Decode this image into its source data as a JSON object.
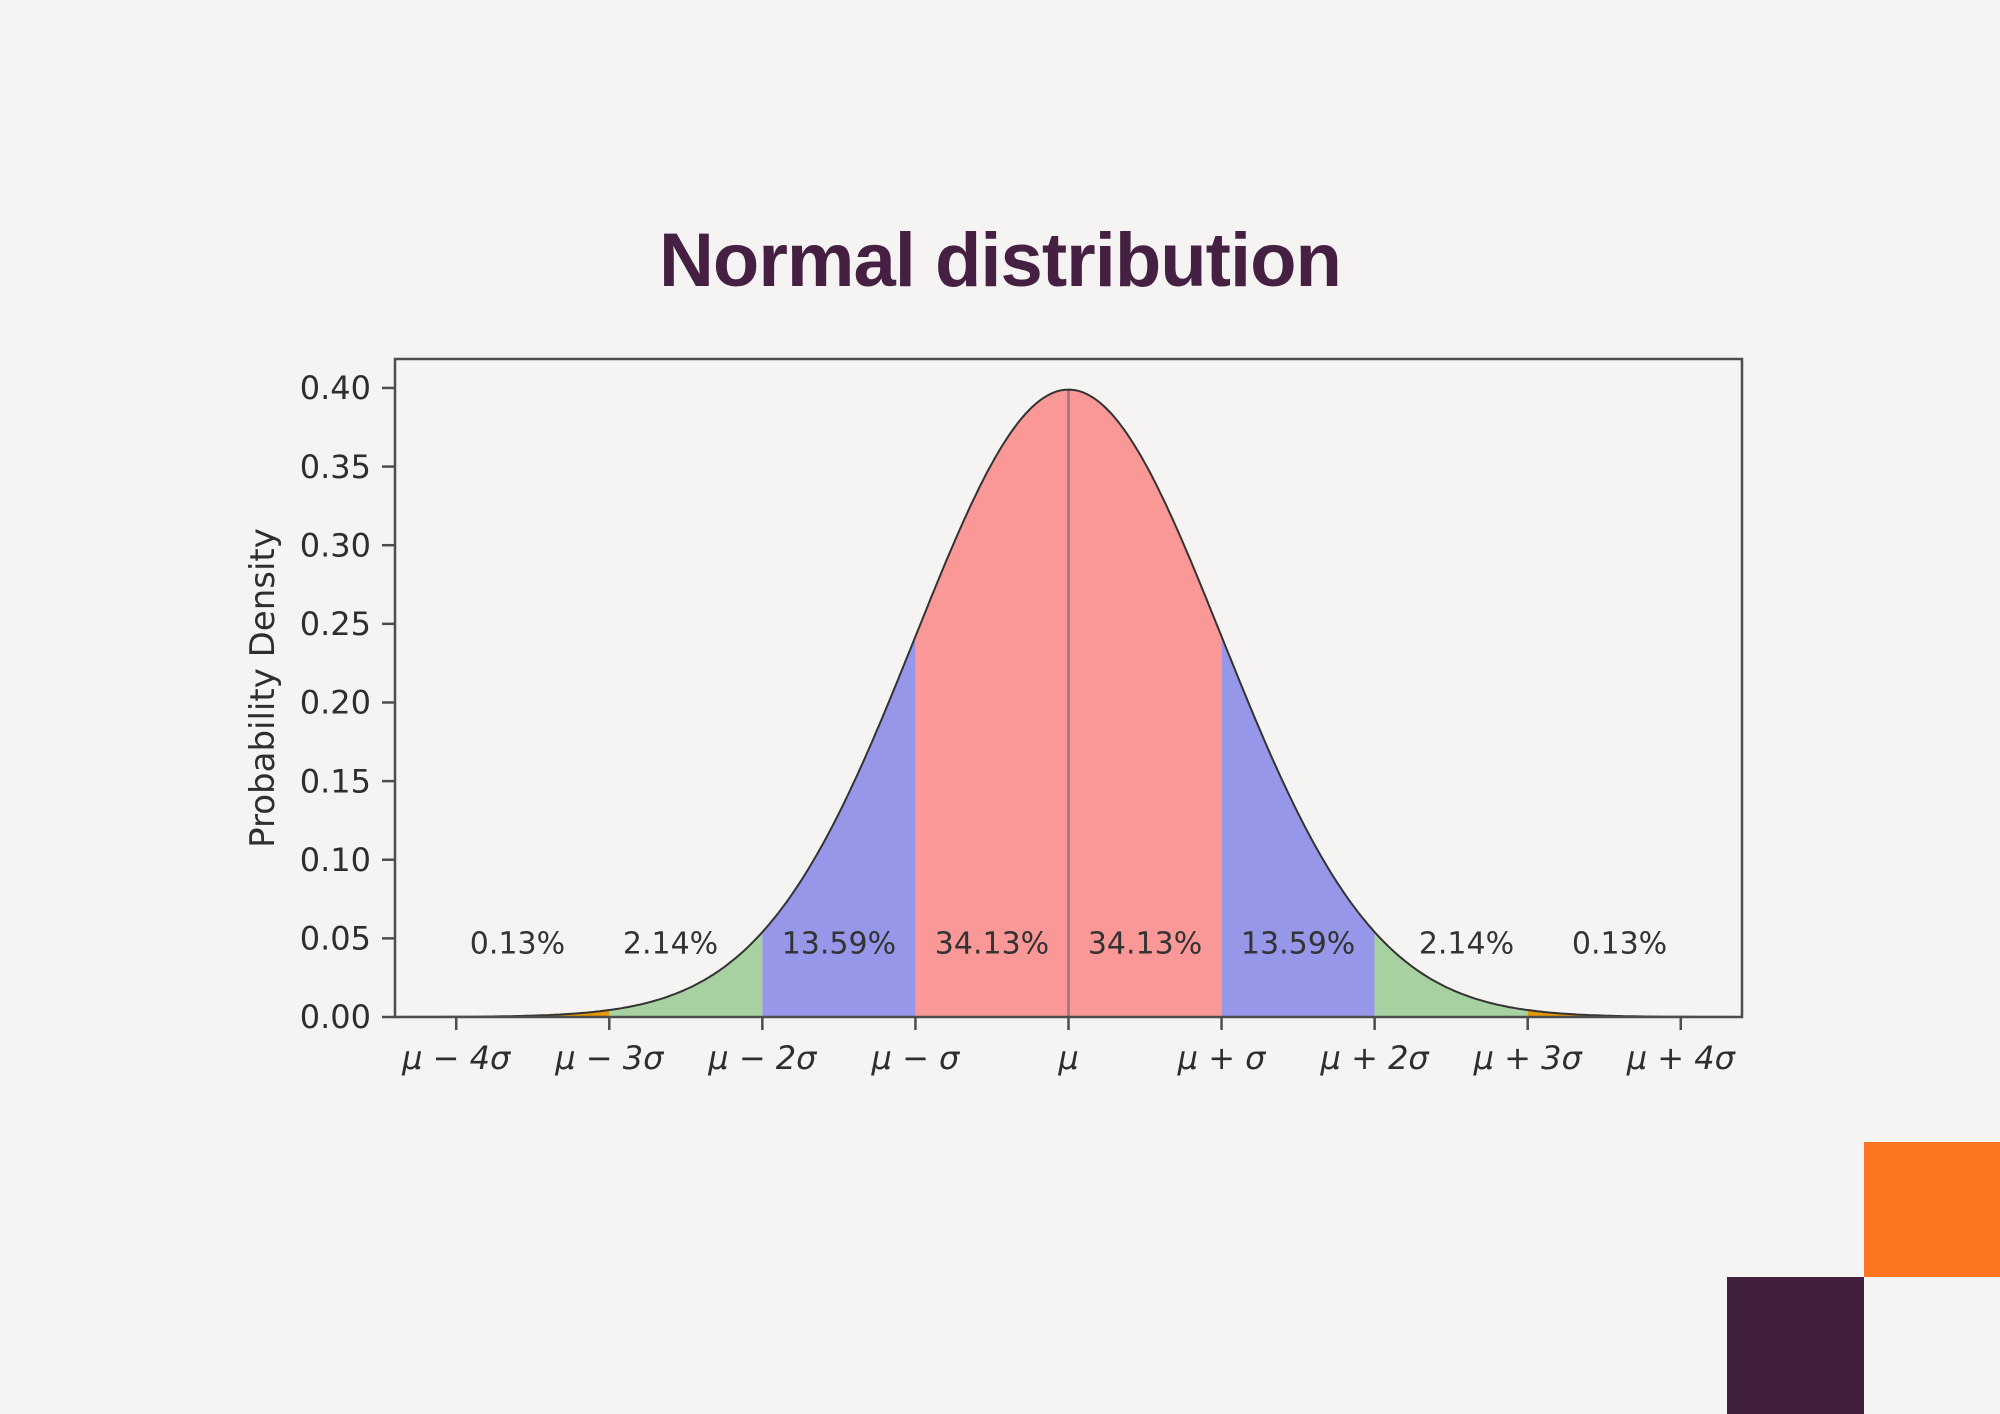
{
  "page": {
    "title": "Normal distribution",
    "background_color": "#f5f4f2",
    "title_color": "#452042"
  },
  "decorations": {
    "orange_square_color": "#fb7420",
    "purple_square_color": "#41203d"
  },
  "chart_data": {
    "type": "area",
    "title": "Normal distribution",
    "xlabel": "",
    "ylabel": "Probability Density",
    "xlim": [
      -4.4,
      4.4
    ],
    "ylim": [
      0,
      0.4184
    ],
    "grid": false,
    "legend": false,
    "distribution": "standard normal probability density, mean mu, std sigma",
    "peak_density": 0.3989,
    "y_ticks": [
      {
        "value": 0.0,
        "label": "0.00"
      },
      {
        "value": 0.05,
        "label": "0.05"
      },
      {
        "value": 0.1,
        "label": "0.10"
      },
      {
        "value": 0.15,
        "label": "0.15"
      },
      {
        "value": 0.2,
        "label": "0.20"
      },
      {
        "value": 0.25,
        "label": "0.25"
      },
      {
        "value": 0.3,
        "label": "0.30"
      },
      {
        "value": 0.35,
        "label": "0.35"
      },
      {
        "value": 0.4,
        "label": "0.40"
      }
    ],
    "x_ticks": [
      {
        "value": -4,
        "label": "μ − 4σ"
      },
      {
        "value": -3,
        "label": "μ − 3σ"
      },
      {
        "value": -2,
        "label": "μ − 2σ"
      },
      {
        "value": -1,
        "label": "μ − σ"
      },
      {
        "value": 0,
        "label": "μ"
      },
      {
        "value": 1,
        "label": "μ + σ"
      },
      {
        "value": 2,
        "label": "μ + 2σ"
      },
      {
        "value": 3,
        "label": "μ + 3σ"
      },
      {
        "value": 4,
        "label": "μ + 4σ"
      }
    ],
    "bands": [
      {
        "from": -4,
        "to": -3,
        "color": "#e69800",
        "name": "minus-4sigma-to-minus-3sigma"
      },
      {
        "from": -3,
        "to": -2,
        "color": "#a7d1a1",
        "name": "minus-3sigma-to-minus-2sigma"
      },
      {
        "from": -2,
        "to": -1,
        "color": "#9697e8",
        "name": "minus-2sigma-to-minus-1sigma"
      },
      {
        "from": -1,
        "to": 0,
        "color": "#fa9898",
        "name": "minus-1sigma-to-mean"
      },
      {
        "from": 0,
        "to": 1,
        "color": "#fa9898",
        "name": "mean-to-plus-1sigma"
      },
      {
        "from": 1,
        "to": 2,
        "color": "#9697e8",
        "name": "plus-1sigma-to-plus-2sigma"
      },
      {
        "from": 2,
        "to": 3,
        "color": "#a7d1a1",
        "name": "plus-2sigma-to-plus-3sigma"
      },
      {
        "from": 3,
        "to": 4,
        "color": "#e69800",
        "name": "plus-3sigma-to-plus-4sigma"
      }
    ],
    "percent_labels": [
      {
        "x": -3.6,
        "text": "0.13%"
      },
      {
        "x": -2.6,
        "text": "2.14%"
      },
      {
        "x": -1.5,
        "text": "13.59%"
      },
      {
        "x": -0.5,
        "text": "34.13%"
      },
      {
        "x": 0.5,
        "text": "34.13%"
      },
      {
        "x": 1.5,
        "text": "13.59%"
      },
      {
        "x": 2.6,
        "text": "2.14%"
      },
      {
        "x": 3.6,
        "text": "0.13%"
      }
    ],
    "percent_label_y": 0.047,
    "mean_line": true,
    "colors": {
      "curve": "#333333",
      "frame": "#4d4d4d",
      "tick_text": "#2e2e2e",
      "percent_text": "#333333",
      "mean_line": "rgba(85,85,85,0.55)"
    }
  }
}
